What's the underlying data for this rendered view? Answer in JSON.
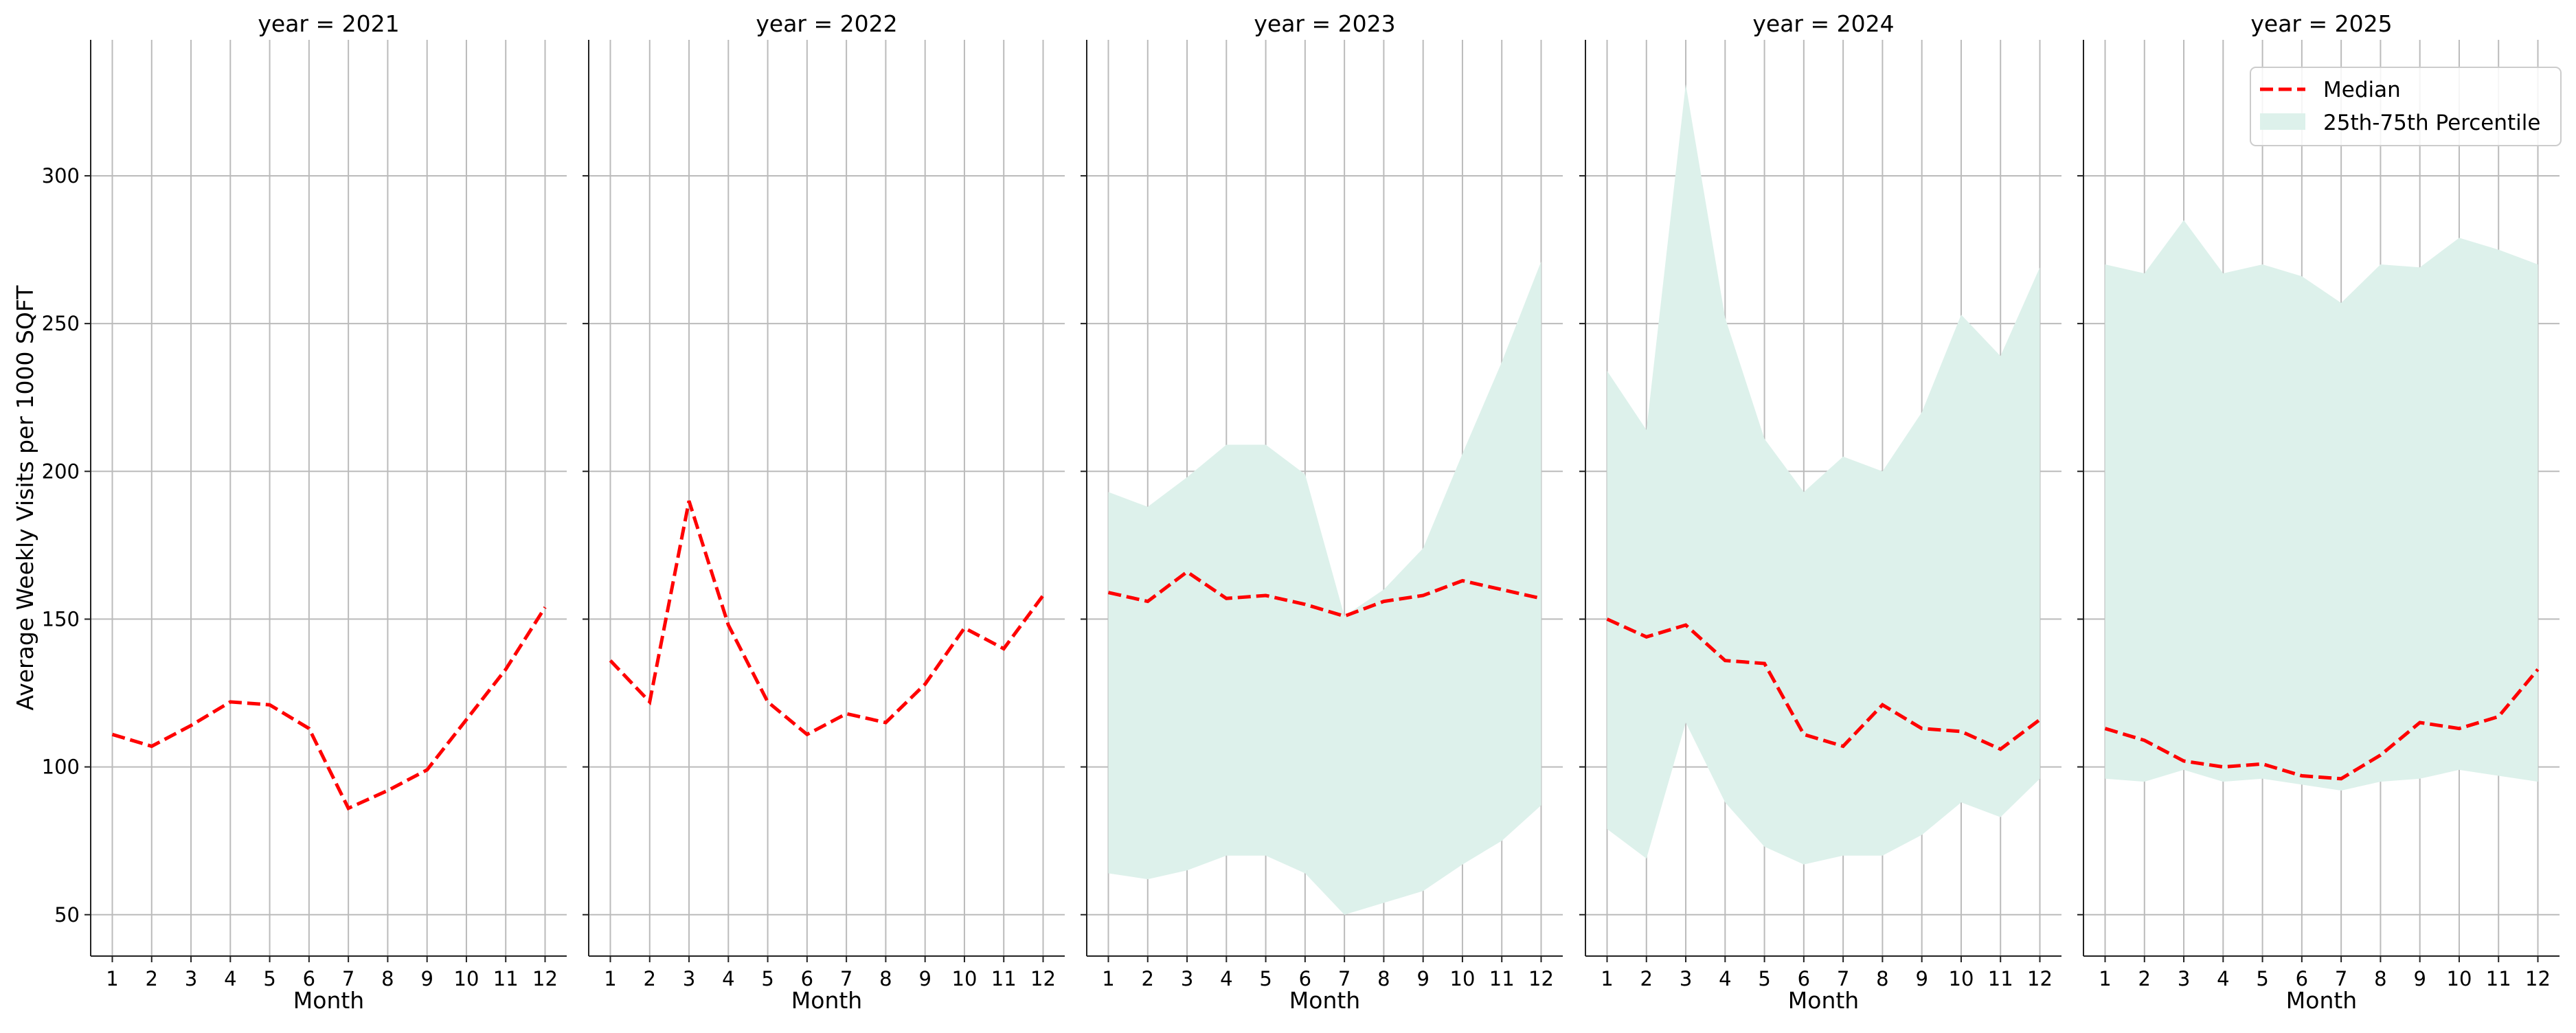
{
  "chart_data": {
    "type": "line",
    "ylabel": "Average Weekly Visits per 1000 SQFT",
    "ylim": [
      36,
      346
    ],
    "yticks": [
      50,
      100,
      150,
      200,
      250,
      300
    ],
    "xticks": [
      1,
      2,
      3,
      4,
      5,
      6,
      7,
      8,
      9,
      10,
      11,
      12
    ],
    "xlim": [
      0.45,
      12.55
    ],
    "grid": true,
    "sharey": true,
    "legend": {
      "position": "upper right",
      "entries": [
        {
          "label": "Median",
          "style": "dashed-line",
          "color": "#ff0000"
        },
        {
          "label": "25th-75th Percentile",
          "style": "band",
          "color": "#ddf1eb"
        }
      ]
    },
    "colors": {
      "median": "#ff0000",
      "band": "#ddf1eb",
      "grid": "#bbbbbb",
      "axis": "#222222"
    },
    "panels": [
      {
        "title": "year = 2021",
        "xlabel": "Month",
        "x": [
          1,
          2,
          3,
          4,
          5,
          6,
          7,
          8,
          9,
          10,
          11,
          12
        ],
        "median": [
          111,
          107,
          114,
          122,
          121,
          113,
          86,
          92,
          99,
          116,
          133,
          154
        ],
        "p25": null,
        "p75": null
      },
      {
        "title": "year = 2022",
        "xlabel": "Month",
        "x": [
          1,
          2,
          3,
          4,
          5,
          6,
          7,
          8,
          9,
          10,
          11,
          12
        ],
        "median": [
          136,
          122,
          190,
          148,
          122,
          111,
          118,
          115,
          128,
          147,
          140,
          158
        ],
        "p25": null,
        "p75": null
      },
      {
        "title": "year = 2023",
        "xlabel": "Month",
        "x": [
          1,
          2,
          3,
          4,
          5,
          6,
          7,
          8,
          9,
          10,
          11,
          12
        ],
        "median": [
          159,
          156,
          166,
          157,
          158,
          155,
          151,
          156,
          158,
          163,
          160,
          157
        ],
        "p25": [
          64,
          62,
          65,
          70,
          70,
          64,
          50,
          54,
          58,
          67,
          75,
          87
        ],
        "p75": [
          193,
          188,
          198,
          209,
          209,
          199,
          151,
          160,
          174,
          206,
          237,
          271
        ]
      },
      {
        "title": "year = 2024",
        "xlabel": "Month",
        "x": [
          1,
          2,
          3,
          4,
          5,
          6,
          7,
          8,
          9,
          10,
          11,
          12
        ],
        "median": [
          150,
          144,
          148,
          136,
          135,
          111,
          107,
          121,
          113,
          112,
          106,
          116
        ],
        "p25": [
          79,
          69,
          115,
          88,
          73,
          67,
          70,
          70,
          77,
          88,
          83,
          96
        ],
        "p75": [
          234,
          214,
          331,
          252,
          211,
          193,
          205,
          200,
          220,
          253,
          239,
          269
        ]
      },
      {
        "title": "year = 2025",
        "xlabel": "Month",
        "x": [
          1,
          2,
          3,
          4,
          5,
          6,
          7,
          8,
          9,
          10,
          11,
          12
        ],
        "median": [
          113,
          109,
          102,
          100,
          101,
          97,
          96,
          104,
          115,
          113,
          117,
          133
        ],
        "p25": [
          96,
          95,
          99,
          95,
          96,
          94,
          92,
          95,
          96,
          99,
          97,
          95
        ],
        "p75": [
          270,
          267,
          285,
          267,
          270,
          266,
          257,
          270,
          269,
          279,
          275,
          270
        ]
      }
    ]
  }
}
